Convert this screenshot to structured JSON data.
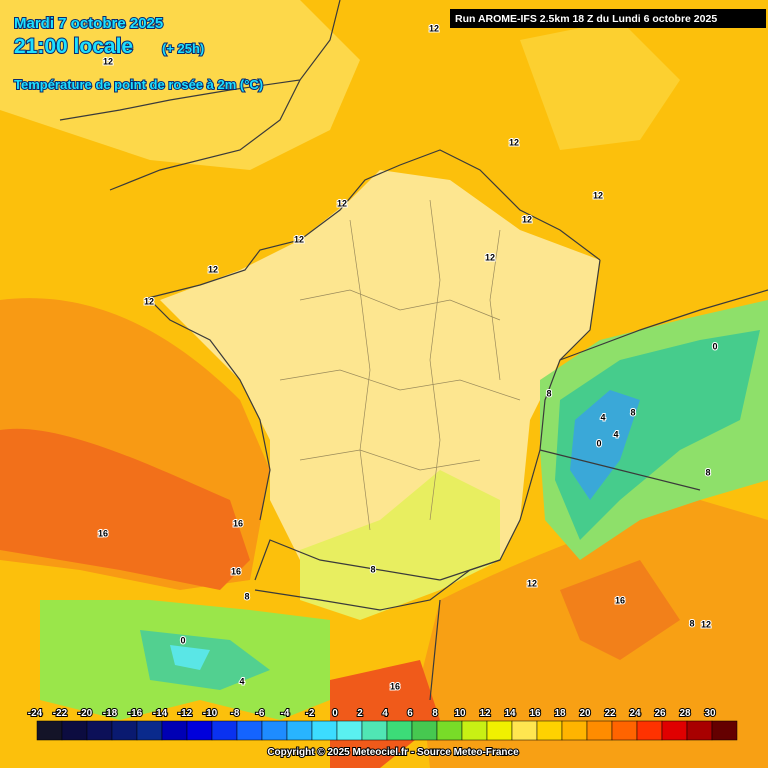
{
  "header": {
    "date": "Mardi 7 octobre 2025",
    "time": "21:00 locale",
    "offset": "(+ 25h)",
    "parameter": "Température de point de rosée à 2m (°C)"
  },
  "run_info": "Run AROME-IFS 2.5km 18 Z du Lundi 6 octobre 2025",
  "contour_labels": [
    12,
    12,
    12,
    12,
    12,
    12,
    12,
    12,
    12,
    12,
    0,
    8,
    8,
    4,
    4,
    0,
    8,
    16,
    16,
    16,
    8,
    8,
    12,
    16,
    8,
    12,
    0,
    4,
    16
  ],
  "legend": {
    "labels": [
      -24,
      -22,
      -20,
      -18,
      -16,
      -14,
      -12,
      -10,
      -8,
      -6,
      -4,
      -2,
      0,
      2,
      4,
      6,
      8,
      10,
      12,
      14,
      16,
      18,
      20,
      22,
      24,
      26,
      28,
      30
    ],
    "colors": [
      "#141428",
      "#0c0c40",
      "#0c1058",
      "#0a1a70",
      "#0a2a8c",
      "#0000b4",
      "#0000dc",
      "#0a32f0",
      "#1464ff",
      "#1e8cff",
      "#28b4ff",
      "#3cdcff",
      "#5af0f0",
      "#50e6b4",
      "#3cdc78",
      "#46c850",
      "#78dc28",
      "#c8f014",
      "#f0f000",
      "#ffe650",
      "#ffd200",
      "#ffb400",
      "#ff8c00",
      "#ff6400",
      "#ff3200",
      "#e00000",
      "#a80000",
      "#640000"
    ]
  },
  "copyright": "Copyright © 2025 Meteociel.fr - Source Meteo-France"
}
